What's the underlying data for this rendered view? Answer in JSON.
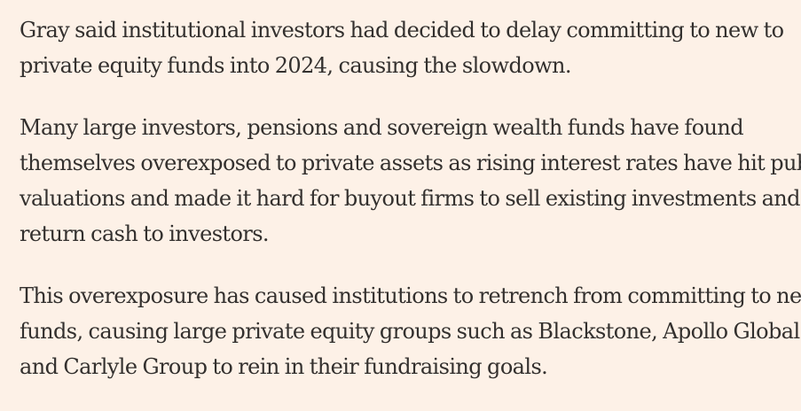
{
  "article": {
    "paragraphs": [
      {
        "lines": [
          "Gray said institutional investors had decided to delay committing to new to",
          "private equity funds into 2024, causing the slowdown."
        ]
      },
      {
        "lines": [
          "Many large investors, pensions and sovereign wealth funds have found",
          "themselves overexposed to private assets as rising interest rates have hit public",
          "valuations and made it hard for buyout firms to sell existing investments and",
          "return cash to investors."
        ]
      },
      {
        "lines": [
          "This overexposure has caused institutions to retrench from committing to new",
          "funds, causing large private equity groups such as Blackstone, Apollo Global",
          "and Carlyle Group to rein in their fundraising goals."
        ]
      }
    ]
  }
}
